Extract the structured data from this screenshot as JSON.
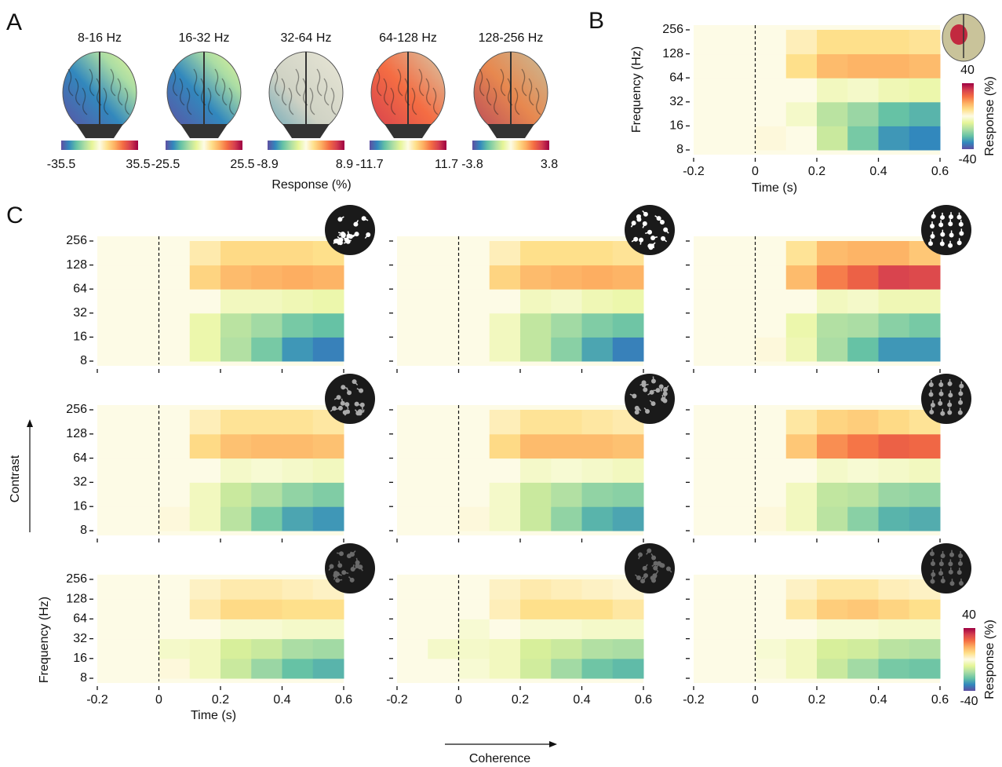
{
  "chart_data": [
    {
      "type": "brain-maps",
      "panel": "A",
      "titles": [
        "8-16 Hz",
        "16-32 Hz",
        "32-64 Hz",
        "64-128 Hz",
        "128-256 Hz"
      ],
      "clims": [
        [
          -35.5,
          35.5
        ],
        [
          -25.5,
          25.5
        ],
        [
          -8.9,
          8.9
        ],
        [
          -11.7,
          11.7
        ],
        [
          -3.8,
          3.8
        ]
      ],
      "xlabel": "Response (%)"
    },
    {
      "type": "heatmap",
      "panel": "B",
      "xlabel": "Time (s)",
      "ylabel": "Frequency (Hz)",
      "xlim": [
        -0.2,
        0.6
      ],
      "xticks": [
        -0.2,
        0,
        0.2,
        0.4,
        0.6
      ],
      "ylim": [
        8,
        256
      ],
      "yticks": [
        8,
        16,
        32,
        64,
        128,
        256
      ],
      "log_y": true,
      "xbins": [
        -0.2,
        -0.1,
        0,
        0.1,
        0.2,
        0.3,
        0.4,
        0.5,
        0.6
      ],
      "ybins": [
        8,
        16,
        32,
        64,
        128,
        256
      ],
      "values": [
        [
          0,
          0,
          1,
          0,
          -12,
          -22,
          -30,
          -32
        ],
        [
          0,
          0,
          0,
          -3,
          -14,
          -18,
          -24,
          -26
        ],
        [
          0,
          0,
          0,
          0,
          -4,
          -3,
          -5,
          -6
        ],
        [
          0,
          0,
          0,
          8,
          14,
          15,
          15,
          14
        ],
        [
          0,
          0,
          0,
          4,
          8,
          8,
          8,
          7
        ]
      ],
      "clim": [
        -40,
        40
      ],
      "cticks": [
        -40,
        40
      ],
      "colorbar_label": "Response (%)",
      "colormap": [
        "#5e4fa2",
        "#3288bd",
        "#66c2a5",
        "#abdda4",
        "#e6f598",
        "#fdfbe6",
        "#fee08b",
        "#fdae61",
        "#f46d43",
        "#d53e4f",
        "#9e0142"
      ]
    },
    {
      "type": "heatmap-grid",
      "panel": "C",
      "xlabel": "Time (s)",
      "ylabel": "Frequency (Hz)",
      "row_label": "Contrast",
      "col_label": "Coherence",
      "xlim": [
        -0.2,
        0.6
      ],
      "xticks": [
        -0.2,
        0,
        0.2,
        0.4,
        0.6
      ],
      "ylim": [
        8,
        256
      ],
      "yticks": [
        8,
        16,
        32,
        64,
        128,
        256
      ],
      "log_y": true,
      "xbins": [
        -0.2,
        -0.1,
        0,
        0.1,
        0.2,
        0.3,
        0.4,
        0.5,
        0.6
      ],
      "ybins": [
        8,
        16,
        32,
        64,
        128,
        256
      ],
      "clim": [
        -40,
        40
      ],
      "cticks": [
        -40,
        40
      ],
      "colorbar_label": "Response (%)",
      "maps": [
        [
          [
            [
              0,
              0,
              0,
              -6,
              -15,
              -22,
              -30,
              -33
            ],
            [
              0,
              0,
              0,
              -6,
              -14,
              -17,
              -22,
              -24
            ],
            [
              0,
              0,
              0,
              0,
              -4,
              -4,
              -5,
              -6
            ],
            [
              0,
              0,
              0,
              10,
              14,
              15,
              16,
              15
            ],
            [
              0,
              0,
              0,
              5,
              9,
              9,
              9,
              8
            ]
          ],
          [
            [
              0,
              0,
              0,
              -4,
              -13,
              -20,
              -28,
              -33
            ],
            [
              0,
              0,
              0,
              -4,
              -13,
              -17,
              -21,
              -23
            ],
            [
              0,
              0,
              0,
              0,
              -4,
              -3,
              -5,
              -6
            ],
            [
              0,
              0,
              0,
              10,
              14,
              15,
              16,
              15
            ],
            [
              0,
              0,
              0,
              4,
              8,
              8,
              8,
              7
            ]
          ],
          [
            [
              0,
              0,
              1,
              -5,
              -16,
              -24,
              -30,
              -30
            ],
            [
              0,
              0,
              0,
              -6,
              -15,
              -16,
              -20,
              -22
            ],
            [
              0,
              0,
              0,
              0,
              -4,
              -3,
              -5,
              -5
            ],
            [
              0,
              0,
              0,
              14,
              22,
              26,
              31,
              30
            ],
            [
              0,
              0,
              0,
              7,
              14,
              15,
              15,
              12
            ]
          ]
        ],
        [
          [
            [
              0,
              0,
              1,
              -4,
              -14,
              -22,
              -28,
              -30
            ],
            [
              0,
              0,
              0,
              -4,
              -12,
              -15,
              -19,
              -21
            ],
            [
              0,
              0,
              0,
              0,
              -3,
              -2,
              -3,
              -4
            ],
            [
              0,
              0,
              0,
              9,
              13,
              14,
              14,
              13
            ],
            [
              0,
              0,
              0,
              4,
              7,
              7,
              7,
              6
            ]
          ],
          [
            [
              0,
              0,
              1,
              -3,
              -12,
              -19,
              -26,
              -28
            ],
            [
              0,
              0,
              0,
              -3,
              -12,
              -15,
              -19,
              -20
            ],
            [
              0,
              0,
              0,
              0,
              -3,
              -2,
              -3,
              -4
            ],
            [
              0,
              0,
              0,
              9,
              14,
              14,
              14,
              13
            ],
            [
              0,
              0,
              0,
              4,
              7,
              7,
              6,
              5
            ]
          ],
          [
            [
              0,
              0,
              1,
              -4,
              -14,
              -20,
              -26,
              -27
            ],
            [
              0,
              0,
              0,
              -4,
              -13,
              -14,
              -18,
              -19
            ],
            [
              0,
              0,
              0,
              0,
              -3,
              -2,
              -3,
              -4
            ],
            [
              0,
              0,
              0,
              12,
              20,
              23,
              26,
              25
            ],
            [
              0,
              0,
              0,
              6,
              10,
              11,
              9,
              7
            ]
          ]
        ],
        [
          [
            [
              0,
              0,
              1,
              -4,
              -12,
              -18,
              -24,
              -26
            ],
            [
              0,
              0,
              -3,
              -4,
              -10,
              -12,
              -16,
              -17
            ],
            [
              0,
              0,
              0,
              0,
              -2,
              -2,
              -3,
              -3
            ],
            [
              0,
              0,
              0,
              5,
              9,
              9,
              8,
              8
            ],
            [
              0,
              0,
              0,
              3,
              5,
              5,
              4,
              3
            ]
          ],
          [
            [
              0,
              0,
              -2,
              -4,
              -11,
              -17,
              -23,
              -25
            ],
            [
              0,
              -3,
              -3,
              -4,
              -10,
              -12,
              -15,
              -16
            ],
            [
              0,
              0,
              -2,
              0,
              -2,
              -2,
              -3,
              -3
            ],
            [
              0,
              0,
              0,
              4,
              8,
              8,
              8,
              6
            ],
            [
              0,
              0,
              0,
              3,
              5,
              4,
              3,
              2
            ]
          ],
          [
            [
              0,
              0,
              -1,
              -4,
              -12,
              -17,
              -22,
              -23
            ],
            [
              0,
              0,
              -2,
              -4,
              -10,
              -11,
              -14,
              -15
            ],
            [
              0,
              0,
              0,
              0,
              -2,
              -2,
              -3,
              -3
            ],
            [
              0,
              0,
              0,
              6,
              11,
              12,
              10,
              8
            ],
            [
              0,
              0,
              0,
              3,
              6,
              6,
              4,
              3
            ]
          ]
        ]
      ]
    }
  ]
}
